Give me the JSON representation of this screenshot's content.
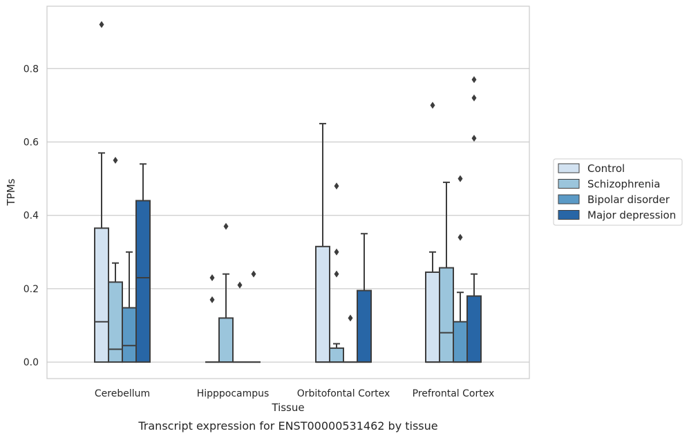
{
  "caption": "Transcript expression for ENST00000531462 by tissue",
  "chart_data": {
    "type": "box",
    "xlabel": "Tissue",
    "ylabel": "TPMs",
    "ylim": [
      -0.045,
      0.97
    ],
    "yticks": [
      0.0,
      0.2,
      0.4,
      0.6,
      0.8
    ],
    "ytick_labels": [
      "0.0",
      "0.2",
      "0.4",
      "0.6",
      "0.8"
    ],
    "grid": "horizontal",
    "legend_position": "right",
    "categories": [
      "Cerebellum",
      "Hipppocampus",
      "Orbitofontal Cortex",
      "Prefrontal Cortex"
    ],
    "series": [
      {
        "name": "Control",
        "color": "#d2e2f1",
        "boxes": [
          {
            "q1": 0.0,
            "median": 0.11,
            "q3": 0.365,
            "whisker_low": 0.0,
            "whisker_high": 0.57,
            "outliers": [
              0.92
            ]
          },
          {
            "q1": 0.0,
            "median": 0.0,
            "q3": 0.0,
            "whisker_low": 0.0,
            "whisker_high": 0.0,
            "outliers": [
              0.17,
              0.23
            ]
          },
          {
            "q1": 0.0,
            "median": 0.0,
            "q3": 0.315,
            "whisker_low": 0.0,
            "whisker_high": 0.65,
            "outliers": []
          },
          {
            "q1": 0.0,
            "median": 0.0,
            "q3": 0.245,
            "whisker_low": 0.0,
            "whisker_high": 0.3,
            "outliers": [
              0.7
            ]
          }
        ]
      },
      {
        "name": "Schizophrenia",
        "color": "#9bc5dc",
        "boxes": [
          {
            "q1": 0.0,
            "median": 0.035,
            "q3": 0.218,
            "whisker_low": 0.0,
            "whisker_high": 0.27,
            "outliers": [
              0.55
            ]
          },
          {
            "q1": 0.0,
            "median": 0.0,
            "q3": 0.12,
            "whisker_low": 0.0,
            "whisker_high": 0.24,
            "outliers": [
              0.37
            ]
          },
          {
            "q1": 0.0,
            "median": 0.0,
            "q3": 0.038,
            "whisker_low": 0.0,
            "whisker_high": 0.05,
            "outliers": [
              0.24,
              0.3,
              0.48
            ]
          },
          {
            "q1": 0.0,
            "median": 0.08,
            "q3": 0.257,
            "whisker_low": 0.0,
            "whisker_high": 0.49,
            "outliers": []
          }
        ]
      },
      {
        "name": "Bipolar disorder",
        "color": "#5b9ac6",
        "boxes": [
          {
            "q1": 0.0,
            "median": 0.045,
            "q3": 0.148,
            "whisker_low": 0.0,
            "whisker_high": 0.3,
            "outliers": []
          },
          {
            "q1": 0.0,
            "median": 0.0,
            "q3": 0.0,
            "whisker_low": 0.0,
            "whisker_high": 0.0,
            "outliers": [
              0.21
            ]
          },
          {
            "q1": 0.0,
            "median": 0.0,
            "q3": 0.0,
            "whisker_low": 0.0,
            "whisker_high": 0.0,
            "outliers": [
              0.12
            ]
          },
          {
            "q1": 0.0,
            "median": 0.0,
            "q3": 0.11,
            "whisker_low": 0.0,
            "whisker_high": 0.19,
            "outliers": [
              0.34,
              0.5
            ]
          }
        ]
      },
      {
        "name": "Major depression",
        "color": "#2866a6",
        "boxes": [
          {
            "q1": 0.0,
            "median": 0.23,
            "q3": 0.44,
            "whisker_low": 0.0,
            "whisker_high": 0.54,
            "outliers": []
          },
          {
            "q1": 0.0,
            "median": 0.0,
            "q3": 0.0,
            "whisker_low": 0.0,
            "whisker_high": 0.0,
            "outliers": [
              0.24
            ]
          },
          {
            "q1": 0.0,
            "median": 0.0,
            "q3": 0.195,
            "whisker_low": 0.0,
            "whisker_high": 0.35,
            "outliers": []
          },
          {
            "q1": 0.0,
            "median": 0.0,
            "q3": 0.18,
            "whisker_low": 0.0,
            "whisker_high": 0.24,
            "outliers": [
              0.61,
              0.72,
              0.77
            ]
          }
        ]
      }
    ]
  }
}
